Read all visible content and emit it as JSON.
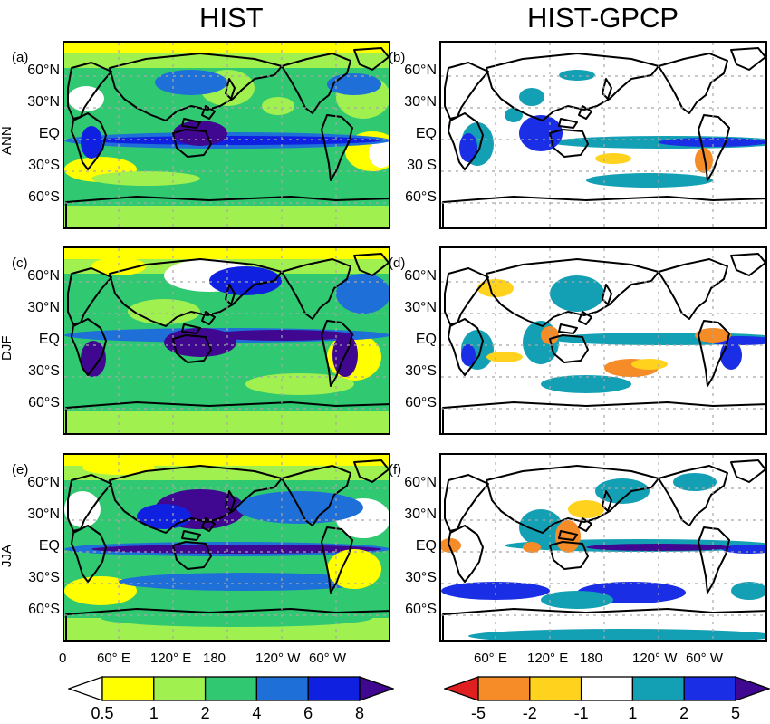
{
  "titles": {
    "left": "HIST",
    "right": "HIST-GPCP"
  },
  "row_labels": [
    "ANN",
    "DJF",
    "JJA"
  ],
  "panel_labels": [
    "(a)",
    "(b)",
    "(c)",
    "(d)",
    "(e)",
    "(f)"
  ],
  "lat_ticks_left": [
    "60°N",
    "30°N",
    "EQ",
    "30°S",
    "60°S"
  ],
  "lat_ticks_right_ann": [
    "60°N",
    "30°N",
    "EQ",
    "30 S",
    "60°S"
  ],
  "lat_ticks_right": [
    "60°N",
    "30°N",
    "EQ",
    "30°S",
    "60°S"
  ],
  "lon_ticks": [
    "0",
    "60° E",
    "120° E",
    "180",
    "120° W",
    "60° W"
  ],
  "chart_data": [
    {
      "type": "heatmap",
      "title": "HIST",
      "panels": [
        "(a) ANN",
        "(c) DJF",
        "(e) JJA"
      ],
      "xlabel": "",
      "ylabel": "",
      "x_range": [
        0,
        360
      ],
      "y_range": [
        -90,
        90
      ],
      "colorbar": {
        "levels": [
          "0.5",
          "1",
          "2",
          "4",
          "6",
          "8"
        ],
        "colors": [
          "#ffffff",
          "#ffff00",
          "#a0f050",
          "#30c870",
          "#1e6fd8",
          "#1020e0",
          "#400890"
        ],
        "extend": "both"
      },
      "grid": true
    },
    {
      "type": "heatmap",
      "title": "HIST-GPCP",
      "panels": [
        "(b) ANN",
        "(d) DJF",
        "(f) JJA"
      ],
      "xlabel": "",
      "ylabel": "",
      "x_range": [
        0,
        360
      ],
      "y_range": [
        -90,
        90
      ],
      "colorbar": {
        "levels": [
          "-5",
          "-2",
          "-1",
          "1",
          "2",
          "5"
        ],
        "colors": [
          "#e02020",
          "#f58c28",
          "#ffd21e",
          "#ffffff",
          "#14a0b4",
          "#1a2ee6",
          "#400890"
        ],
        "extend": "both"
      },
      "grid": true
    }
  ]
}
